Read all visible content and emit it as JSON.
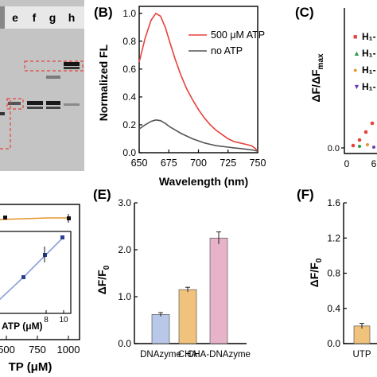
{
  "panels": {
    "B": "(B)",
    "C": "(C)",
    "E": "(E)",
    "F": "(F)"
  },
  "gel": {
    "lane_labels": [
      "e",
      "f",
      "g",
      "h"
    ]
  },
  "colors": {
    "red": "#e8413a",
    "gray": "#555555",
    "blue_bar": "#b9c7e8",
    "orange_bar": "#f1c27b",
    "pink_bar": "#e7b3c9",
    "orange_line": "#e8952e",
    "navy_line": "#2a3f8f",
    "gel_bg": "#c9c9c9"
  },
  "chart_data": [
    {
      "id": "B",
      "type": "line",
      "xlabel": "Wavelength (nm)",
      "ylabel": "Normalized FL",
      "xlim": [
        650,
        750
      ],
      "ylim": [
        0,
        1.05
      ],
      "xticks": [
        650,
        675,
        700,
        725,
        750
      ],
      "yticks": [
        "0.0",
        "0.2",
        "0.4",
        "0.6",
        "0.8",
        "1.0"
      ],
      "legend_position": "top-right",
      "series": [
        {
          "name": "500 μM ATP",
          "color": "#e8413a",
          "x": [
            650,
            655,
            660,
            664,
            668,
            672,
            676,
            680,
            685,
            690,
            695,
            700,
            705,
            710,
            715,
            720,
            725,
            730,
            735,
            740,
            745,
            748,
            750
          ],
          "y": [
            0.65,
            0.82,
            0.95,
            1.0,
            0.98,
            0.9,
            0.79,
            0.68,
            0.56,
            0.46,
            0.38,
            0.31,
            0.25,
            0.2,
            0.16,
            0.13,
            0.1,
            0.08,
            0.07,
            0.06,
            0.05,
            0.03,
            0.01
          ]
        },
        {
          "name": "no ATP",
          "color": "#555555",
          "x": [
            650,
            655,
            660,
            664,
            668,
            672,
            676,
            680,
            685,
            690,
            695,
            700,
            705,
            710,
            715,
            720,
            725,
            730,
            735,
            740,
            745,
            748,
            750
          ],
          "y": [
            0.17,
            0.2,
            0.225,
            0.235,
            0.23,
            0.21,
            0.185,
            0.165,
            0.14,
            0.12,
            0.1,
            0.085,
            0.07,
            0.06,
            0.05,
            0.045,
            0.04,
            0.035,
            0.03,
            0.025,
            0.02,
            0.015,
            0.01
          ]
        }
      ]
    },
    {
      "id": "C",
      "type": "scatter",
      "ylabel": "ΔF/ΔF",
      "ylabel_sub": "max",
      "xticks": [
        "0",
        "6"
      ],
      "yticks": [
        "0.0"
      ],
      "legend": [
        "H₁-",
        "H₁-",
        "H₁-",
        "H₁-"
      ]
    },
    {
      "id": "D",
      "type": "line",
      "xlabel": "TP (μM)",
      "xticks": [
        "500",
        "750",
        "1000"
      ],
      "inset_xlabel": "ATP (μM)",
      "inset_xticks": [
        "8",
        "10"
      ]
    },
    {
      "id": "E",
      "type": "bar",
      "ylabel": "ΔF/F",
      "ylabel_sub": "0",
      "ylim": [
        0,
        3.0
      ],
      "yticks": [
        "0.0",
        "1.0",
        "2.0",
        "3.0"
      ],
      "categories": [
        "DNAzyme",
        "CHA",
        "CHA-DNAzyme"
      ],
      "values": [
        0.62,
        1.15,
        2.25
      ],
      "errors": [
        0.04,
        0.05,
        0.13
      ]
    },
    {
      "id": "F",
      "type": "bar",
      "ylabel": "ΔF/F",
      "ylabel_sub": "0",
      "ylim": [
        0,
        1.6
      ],
      "yticks": [
        "0.0",
        "0.4",
        "0.8",
        "1.2",
        "1.6"
      ],
      "categories": [
        "UTP"
      ],
      "values": [
        0.2
      ],
      "errors": [
        0.03
      ]
    }
  ]
}
